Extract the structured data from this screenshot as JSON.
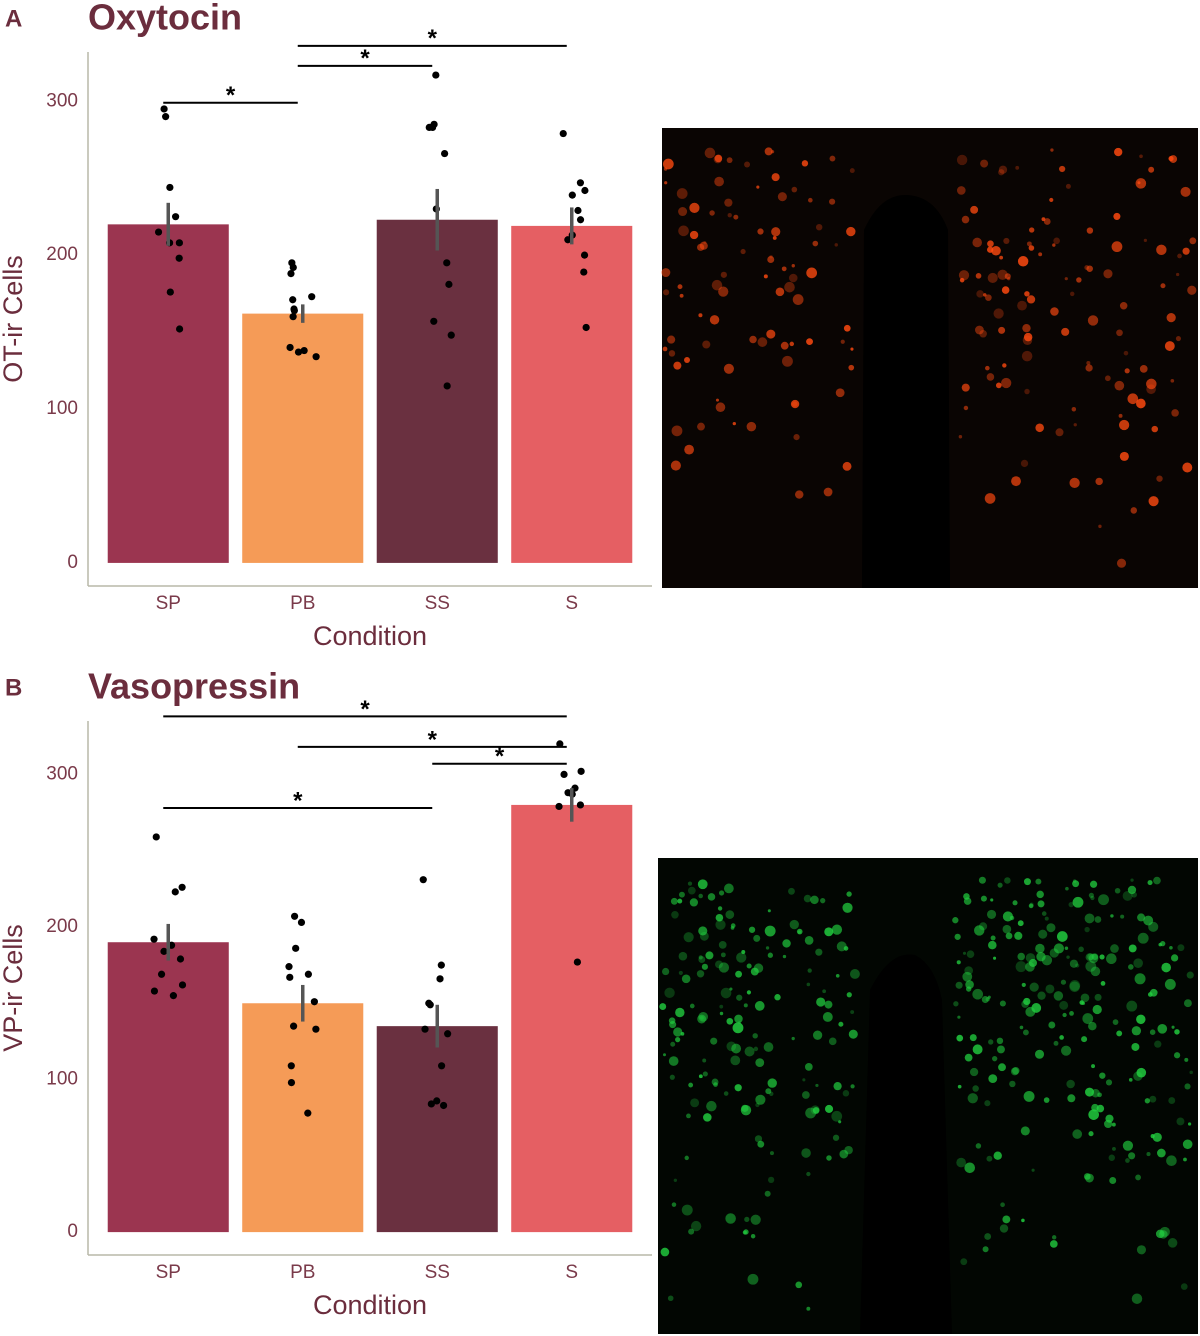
{
  "chart_data": [
    {
      "type": "bar",
      "panel_label": "A",
      "title": "Oxytocin",
      "xlabel": "Condition",
      "ylabel": "OT-ir Cells",
      "categories": [
        "SP",
        "PB",
        "SS",
        "S"
      ],
      "values": [
        220,
        162,
        223,
        219
      ],
      "errors": [
        14,
        6,
        20,
        12
      ],
      "colors": [
        "#9b3550",
        "#f59b57",
        "#6a3040",
        "#e55f63"
      ],
      "points": [
        [
          295,
          290,
          244,
          225,
          215,
          208,
          208,
          198,
          176,
          152
        ],
        [
          195,
          192,
          188,
          173,
          171,
          165,
          164,
          160,
          140,
          138,
          137,
          134
        ],
        [
          317,
          285,
          283,
          283,
          266,
          230,
          195,
          181,
          157,
          148,
          115
        ],
        [
          279,
          247,
          242,
          239,
          229,
          223,
          213,
          210,
          200,
          189,
          153
        ]
      ],
      "annotations": [
        {
          "text": "*",
          "from": "SP",
          "to": "PB",
          "y": 299
        },
        {
          "text": "*",
          "from": "PB",
          "to": "SS",
          "y": 323
        },
        {
          "text": "*",
          "from": "PB",
          "to": "S",
          "y": 336
        }
      ],
      "ylim": [
        -15,
        332
      ],
      "yticks": [
        0,
        100,
        200,
        300
      ],
      "grid": false
    },
    {
      "type": "bar",
      "panel_label": "B",
      "title": "Vasopressin",
      "xlabel": "Condition",
      "ylabel": "VP-ir Cells",
      "categories": [
        "SP",
        "PB",
        "SS",
        "S"
      ],
      "values": [
        190,
        150,
        135,
        280
      ],
      "errors": [
        12,
        12,
        14,
        11
      ],
      "colors": [
        "#9b3550",
        "#f59b57",
        "#6a3040",
        "#e55f63"
      ],
      "points": [
        [
          259,
          223,
          226,
          192,
          188,
          184,
          179,
          169,
          162,
          158,
          155
        ],
        [
          207,
          203,
          186,
          174,
          169,
          167,
          151,
          135,
          133,
          109,
          98,
          78
        ],
        [
          231,
          175,
          166,
          150,
          149,
          133,
          130,
          109,
          86,
          84,
          83
        ],
        [
          320,
          302,
          300,
          291,
          288,
          287,
          280,
          279,
          177
        ]
      ],
      "annotations": [
        {
          "text": "*",
          "from": "SP",
          "to": "S",
          "y": 338
        },
        {
          "text": "*",
          "from": "PB",
          "to": "S",
          "y": 318
        },
        {
          "text": "*",
          "from": "SS",
          "to": "S",
          "y": 307
        },
        {
          "text": "*",
          "from": "SP",
          "to": "SS",
          "y": 278
        }
      ],
      "ylim": [
        -15,
        335
      ],
      "yticks": [
        0,
        100,
        200,
        300
      ],
      "grid": false
    }
  ]
}
